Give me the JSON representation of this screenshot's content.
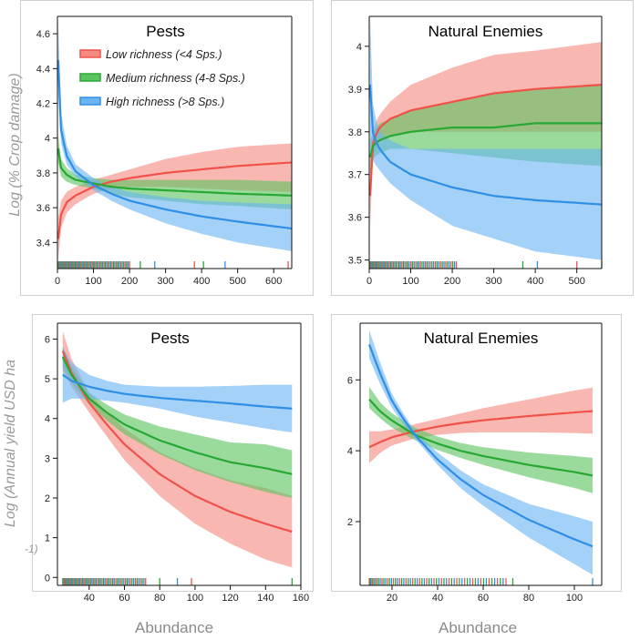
{
  "colors": {
    "low": "#f0524a",
    "medium": "#27a832",
    "high": "#2f8fe6",
    "low_band": "#f58a82",
    "medium_band": "#5cc45f",
    "high_band": "#6bb4f2"
  },
  "shared": {
    "ylabel_top": "Log (% Crop damage)",
    "ylabel_bottom": "Log (Annual yield USD ha",
    "ylabel_bottom_cont": "-1)",
    "xlabel_left": "Abundance",
    "xlabel_right": "Abundance"
  },
  "legend": [
    {
      "key": "low",
      "label": "Low richness (<4 Sps.)"
    },
    {
      "key": "medium",
      "label": "Medium richness (4-8 Sps.)"
    },
    {
      "key": "high",
      "label": "High richness (>8 Sps.)"
    }
  ],
  "chart_data": [
    {
      "id": "tl",
      "type": "line",
      "title": "Pests",
      "xlabel": "",
      "ylabel": "Log (% Crop damage)",
      "xlim": [
        0,
        650
      ],
      "ylim": [
        3.25,
        4.7
      ],
      "xticks": [
        0,
        100,
        200,
        300,
        400,
        500,
        600
      ],
      "yticks": [
        3.4,
        3.6,
        3.8,
        4.0,
        4.2,
        4.4,
        4.6
      ],
      "series": [
        {
          "name": "Low richness (<4 Sps.)",
          "key": "low",
          "x": [
            2,
            10,
            25,
            50,
            100,
            150,
            200,
            300,
            400,
            500,
            650
          ],
          "y": [
            3.42,
            3.56,
            3.63,
            3.67,
            3.72,
            3.75,
            3.77,
            3.8,
            3.82,
            3.84,
            3.86
          ],
          "lower": [
            3.3,
            3.48,
            3.57,
            3.62,
            3.68,
            3.71,
            3.72,
            3.72,
            3.71,
            3.7,
            3.69
          ],
          "upper": [
            3.54,
            3.64,
            3.69,
            3.72,
            3.76,
            3.79,
            3.82,
            3.88,
            3.92,
            3.95,
            3.97
          ]
        },
        {
          "name": "Medium richness (4-8 Sps.)",
          "key": "medium",
          "x": [
            2,
            10,
            25,
            50,
            100,
            150,
            200,
            300,
            400,
            500,
            650
          ],
          "y": [
            3.94,
            3.83,
            3.79,
            3.76,
            3.74,
            3.72,
            3.71,
            3.7,
            3.69,
            3.68,
            3.67
          ],
          "lower": [
            3.86,
            3.78,
            3.75,
            3.73,
            3.71,
            3.68,
            3.66,
            3.64,
            3.62,
            3.61,
            3.59
          ],
          "upper": [
            4.02,
            3.88,
            3.83,
            3.79,
            3.77,
            3.76,
            3.76,
            3.76,
            3.76,
            3.76,
            3.75
          ]
        },
        {
          "name": "High richness (>8 Sps.)",
          "key": "high",
          "x": [
            2,
            5,
            10,
            25,
            50,
            100,
            150,
            200,
            300,
            400,
            500,
            650
          ],
          "y": [
            4.45,
            4.2,
            4.05,
            3.9,
            3.81,
            3.73,
            3.68,
            3.64,
            3.59,
            3.55,
            3.52,
            3.48
          ],
          "lower": [
            4.25,
            4.08,
            3.97,
            3.85,
            3.78,
            3.7,
            3.64,
            3.59,
            3.51,
            3.45,
            3.4,
            3.35
          ],
          "upper": [
            4.68,
            4.35,
            4.15,
            3.96,
            3.85,
            3.77,
            3.72,
            3.69,
            3.66,
            3.64,
            3.63,
            3.62
          ]
        }
      ],
      "rug": {
        "ranges": [
          [
            2,
            200
          ]
        ],
        "sparse": [
          230,
          270,
          380,
          405,
          465,
          640
        ]
      }
    },
    {
      "id": "tr",
      "type": "line",
      "title": "Natural Enemies",
      "xlabel": "",
      "ylabel": "",
      "xlim": [
        0,
        560
      ],
      "ylim": [
        3.48,
        4.07
      ],
      "xticks": [
        0,
        100,
        200,
        300,
        400,
        500
      ],
      "yticks": [
        3.5,
        3.6,
        3.7,
        3.8,
        3.9,
        4.0
      ],
      "series": [
        {
          "name": "Low richness (<4 Sps.)",
          "key": "low",
          "x": [
            2,
            5,
            10,
            25,
            50,
            100,
            150,
            200,
            300,
            400,
            560
          ],
          "y": [
            3.65,
            3.74,
            3.78,
            3.81,
            3.83,
            3.85,
            3.86,
            3.87,
            3.89,
            3.9,
            3.91
          ],
          "lower": [
            3.57,
            3.7,
            3.75,
            3.78,
            3.79,
            3.8,
            3.8,
            3.8,
            3.8,
            3.8,
            3.8
          ],
          "upper": [
            3.73,
            3.78,
            3.81,
            3.84,
            3.87,
            3.91,
            3.93,
            3.95,
            3.98,
            3.99,
            4.01
          ]
        },
        {
          "name": "Medium richness (4-8 Sps.)",
          "key": "medium",
          "x": [
            2,
            10,
            25,
            50,
            100,
            200,
            300,
            400,
            560
          ],
          "y": [
            3.74,
            3.77,
            3.78,
            3.79,
            3.8,
            3.81,
            3.81,
            3.82,
            3.82
          ],
          "lower": [
            3.7,
            3.74,
            3.75,
            3.76,
            3.76,
            3.75,
            3.74,
            3.73,
            3.72
          ],
          "upper": [
            3.78,
            3.8,
            3.82,
            3.83,
            3.85,
            3.87,
            3.89,
            3.9,
            3.91
          ]
        },
        {
          "name": "High richness (>8 Sps.)",
          "key": "high",
          "x": [
            2,
            5,
            10,
            25,
            50,
            100,
            200,
            300,
            400,
            560
          ],
          "y": [
            3.91,
            3.83,
            3.79,
            3.76,
            3.73,
            3.7,
            3.67,
            3.65,
            3.64,
            3.63
          ],
          "lower": [
            3.75,
            3.74,
            3.73,
            3.71,
            3.68,
            3.64,
            3.58,
            3.55,
            3.52,
            3.5
          ],
          "upper": [
            4.07,
            3.92,
            3.85,
            3.8,
            3.78,
            3.76,
            3.76,
            3.76,
            3.76,
            3.76
          ]
        }
      ],
      "rug": {
        "ranges": [
          [
            2,
            210
          ]
        ],
        "sparse": [
          370,
          405,
          500,
          560
        ]
      }
    },
    {
      "id": "bl",
      "type": "line",
      "title": "Pests",
      "xlabel": "Abundance",
      "ylabel": "Log (Annual yield USD ha-1)",
      "xlim": [
        22,
        160
      ],
      "ylim": [
        -0.2,
        6.4
      ],
      "xticks": [
        40,
        60,
        80,
        100,
        120,
        140,
        160
      ],
      "yticks": [
        0,
        1,
        2,
        3,
        4,
        5,
        6
      ],
      "series": [
        {
          "name": "Low richness (<4 Sps.)",
          "key": "low",
          "x": [
            25,
            30,
            40,
            50,
            60,
            80,
            100,
            120,
            140,
            155
          ],
          "y": [
            5.7,
            5.15,
            4.4,
            3.85,
            3.35,
            2.6,
            2.05,
            1.65,
            1.35,
            1.15
          ],
          "lower": [
            5.2,
            4.8,
            4.15,
            3.55,
            2.95,
            2.05,
            1.35,
            0.85,
            0.45,
            0.25
          ],
          "upper": [
            6.2,
            5.5,
            4.65,
            4.15,
            3.75,
            3.15,
            2.75,
            2.45,
            2.25,
            2.05
          ]
        },
        {
          "name": "Medium richness (4-8 Sps.)",
          "key": "medium",
          "x": [
            25,
            30,
            40,
            50,
            60,
            80,
            100,
            120,
            140,
            155
          ],
          "y": [
            5.55,
            5.1,
            4.5,
            4.15,
            3.85,
            3.45,
            3.15,
            2.9,
            2.75,
            2.6
          ],
          "lower": [
            5.3,
            4.9,
            4.35,
            3.95,
            3.6,
            3.1,
            2.7,
            2.4,
            2.15,
            2.0
          ],
          "upper": [
            5.8,
            5.3,
            4.65,
            4.35,
            4.1,
            3.8,
            3.6,
            3.4,
            3.35,
            3.2
          ]
        },
        {
          "name": "High richness (>8 Sps.)",
          "key": "high",
          "x": [
            25,
            30,
            40,
            50,
            60,
            80,
            100,
            120,
            140,
            155
          ],
          "y": [
            5.1,
            4.95,
            4.8,
            4.7,
            4.62,
            4.52,
            4.45,
            4.38,
            4.3,
            4.25
          ],
          "lower": [
            4.4,
            4.5,
            4.5,
            4.45,
            4.4,
            4.25,
            4.05,
            3.9,
            3.75,
            3.65
          ],
          "upper": [
            5.8,
            5.4,
            5.1,
            4.95,
            4.85,
            4.8,
            4.8,
            4.82,
            4.85,
            4.85
          ]
        }
      ],
      "rug": {
        "ranges": [
          [
            25,
            72
          ]
        ],
        "sparse": [
          80,
          90,
          98,
          155
        ]
      }
    },
    {
      "id": "br",
      "type": "line",
      "title": "Natural Enemies",
      "xlabel": "Abundance",
      "ylabel": "",
      "xlim": [
        6,
        112
      ],
      "ylim": [
        0.2,
        7.6
      ],
      "xticks": [
        20,
        40,
        60,
        80,
        100
      ],
      "yticks": [
        2,
        4,
        6
      ],
      "series": [
        {
          "name": "Low richness (<4 Sps.)",
          "key": "low",
          "x": [
            10,
            15,
            20,
            30,
            40,
            50,
            60,
            80,
            100,
            108
          ],
          "y": [
            4.1,
            4.25,
            4.38,
            4.55,
            4.68,
            4.78,
            4.86,
            4.98,
            5.08,
            5.12
          ],
          "lower": [
            3.65,
            3.95,
            4.15,
            4.35,
            4.45,
            4.5,
            4.52,
            4.52,
            4.5,
            4.48
          ],
          "upper": [
            4.55,
            4.55,
            4.6,
            4.75,
            4.9,
            5.05,
            5.2,
            5.45,
            5.7,
            5.78
          ]
        },
        {
          "name": "Medium richness (4-8 Sps.)",
          "key": "medium",
          "x": [
            10,
            15,
            20,
            30,
            40,
            50,
            60,
            80,
            100,
            108
          ],
          "y": [
            5.45,
            5.1,
            4.85,
            4.45,
            4.2,
            4.0,
            3.85,
            3.6,
            3.4,
            3.3
          ],
          "lower": [
            5.2,
            4.9,
            4.65,
            4.3,
            4.02,
            3.8,
            3.6,
            3.25,
            2.95,
            2.8
          ],
          "upper": [
            5.8,
            5.35,
            5.05,
            4.65,
            4.4,
            4.22,
            4.1,
            3.95,
            3.85,
            3.8
          ]
        },
        {
          "name": "High richness (>8 Sps.)",
          "key": "high",
          "x": [
            10,
            15,
            20,
            25,
            30,
            40,
            50,
            60,
            80,
            100,
            108
          ],
          "y": [
            7.0,
            6.15,
            5.4,
            4.9,
            4.45,
            3.75,
            3.2,
            2.75,
            2.05,
            1.5,
            1.3
          ],
          "lower": [
            6.6,
            5.85,
            5.2,
            4.75,
            4.35,
            3.6,
            2.95,
            2.45,
            1.55,
            0.8,
            0.5
          ],
          "upper": [
            7.4,
            6.45,
            5.6,
            5.05,
            4.55,
            3.95,
            3.45,
            3.05,
            2.5,
            2.15,
            2.0
          ]
        }
      ],
      "rug": {
        "ranges": [
          [
            10,
            70
          ]
        ],
        "sparse": [
          73,
          108
        ]
      }
    }
  ]
}
